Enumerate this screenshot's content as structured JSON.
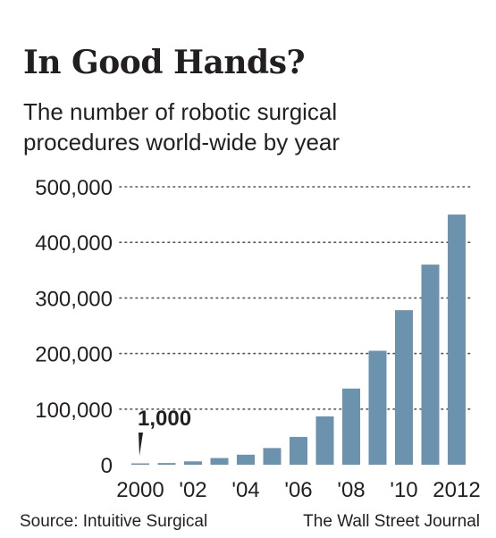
{
  "header": {
    "title": "In Good Hands?",
    "subtitle_line1": "The number of robotic surgical",
    "subtitle_line2": "procedures world-wide by year"
  },
  "footer": {
    "source": "Source: Intuitive Surgical",
    "credit": "The Wall Street Journal"
  },
  "colors": {
    "bar": "#6b93ad",
    "text": "#231f20",
    "grid": "#555555"
  },
  "chart_data": {
    "type": "bar",
    "title": "In Good Hands?",
    "subtitle": "The number of robotic surgical procedures world-wide by year",
    "categories": [
      "2000",
      "2001",
      "2002",
      "2003",
      "2004",
      "2005",
      "2006",
      "2007",
      "2008",
      "2009",
      "2010",
      "2011",
      "2012"
    ],
    "values": [
      1000,
      3000,
      6000,
      12000,
      18000,
      30000,
      50000,
      87000,
      137000,
      205000,
      278000,
      360000,
      450000
    ],
    "x_tick_labels": [
      {
        "index": 0,
        "label": "2000"
      },
      {
        "index": 2,
        "label": "'02"
      },
      {
        "index": 4,
        "label": "'04"
      },
      {
        "index": 6,
        "label": "'06"
      },
      {
        "index": 8,
        "label": "'08"
      },
      {
        "index": 10,
        "label": "'10"
      },
      {
        "index": 12,
        "label": "2012"
      }
    ],
    "y_ticks": [
      0,
      100000,
      200000,
      300000,
      400000,
      500000
    ],
    "y_tick_labels": [
      "0",
      "100,000",
      "200,000",
      "300,000",
      "400,000",
      "500,000"
    ],
    "ylim": [
      0,
      500000
    ],
    "xlabel": "",
    "ylabel": "",
    "grid": true,
    "annotation": {
      "text": "1,000",
      "index": 0,
      "value": 1000
    }
  }
}
